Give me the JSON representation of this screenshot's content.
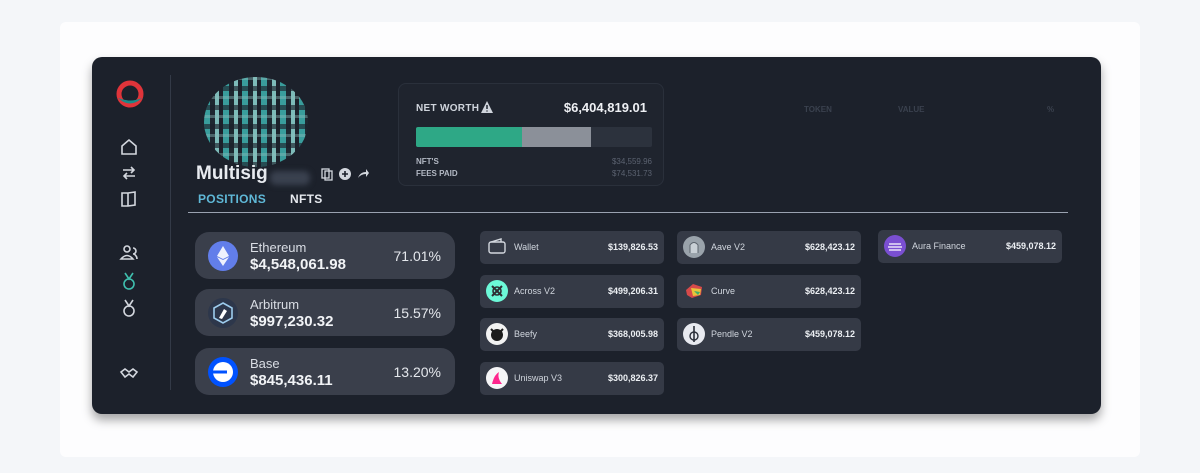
{
  "profile": {
    "name": "Multisig",
    "tabs": [
      "POSITIONS",
      "NFTS"
    ]
  },
  "net_worth": {
    "label": "NET WORTH",
    "value": "$6,404,819.01",
    "bar_fractions": [
      0.45,
      0.29
    ],
    "rows": [
      {
        "label": "NFT'S",
        "value": "$34,559.96"
      },
      {
        "label": "FEES PAID",
        "value": "$74,531.73"
      }
    ]
  },
  "table_headers": [
    "TOKEN",
    "VALUE",
    "%"
  ],
  "chains": [
    {
      "name": "Ethereum",
      "value": "$4,548,061.98",
      "pct": "71.01%",
      "icon": "ethereum-icon",
      "color": "#627eea"
    },
    {
      "name": "Arbitrum",
      "value": "$997,230.32",
      "pct": "15.57%",
      "icon": "arbitrum-icon",
      "color": "#2d374b"
    },
    {
      "name": "Base",
      "value": "$845,436.11",
      "pct": "13.20%",
      "icon": "base-icon",
      "color": "#0052ff"
    }
  ],
  "protocols": [
    {
      "name": "Wallet",
      "value": "$139,826.53",
      "icon": "wallet-icon",
      "color": "#2a2f3a"
    },
    {
      "name": "Across V2",
      "value": "$499,206.31",
      "icon": "across-icon",
      "color": "#6cf9d8"
    },
    {
      "name": "Beefy",
      "value": "$368,005.98",
      "icon": "beefy-icon",
      "color": "#f2f2f2"
    },
    {
      "name": "Uniswap V3",
      "value": "$300,826.37",
      "icon": "uniswap-icon",
      "color": "#f5f5f7"
    },
    {
      "name": "Aave V2",
      "value": "$628,423.12",
      "icon": "aave-icon",
      "color": "#9aa3ab"
    },
    {
      "name": "Curve",
      "value": "$628,423.12",
      "icon": "curve-icon",
      "color": "#d64a4a"
    },
    {
      "name": "Pendle V2",
      "value": "$459,078.12",
      "icon": "pendle-icon",
      "color": "#e8eaf0"
    },
    {
      "name": "Aura Finance",
      "value": "$459,078.12",
      "icon": "aura-icon",
      "color": "#7a4fd1"
    }
  ]
}
